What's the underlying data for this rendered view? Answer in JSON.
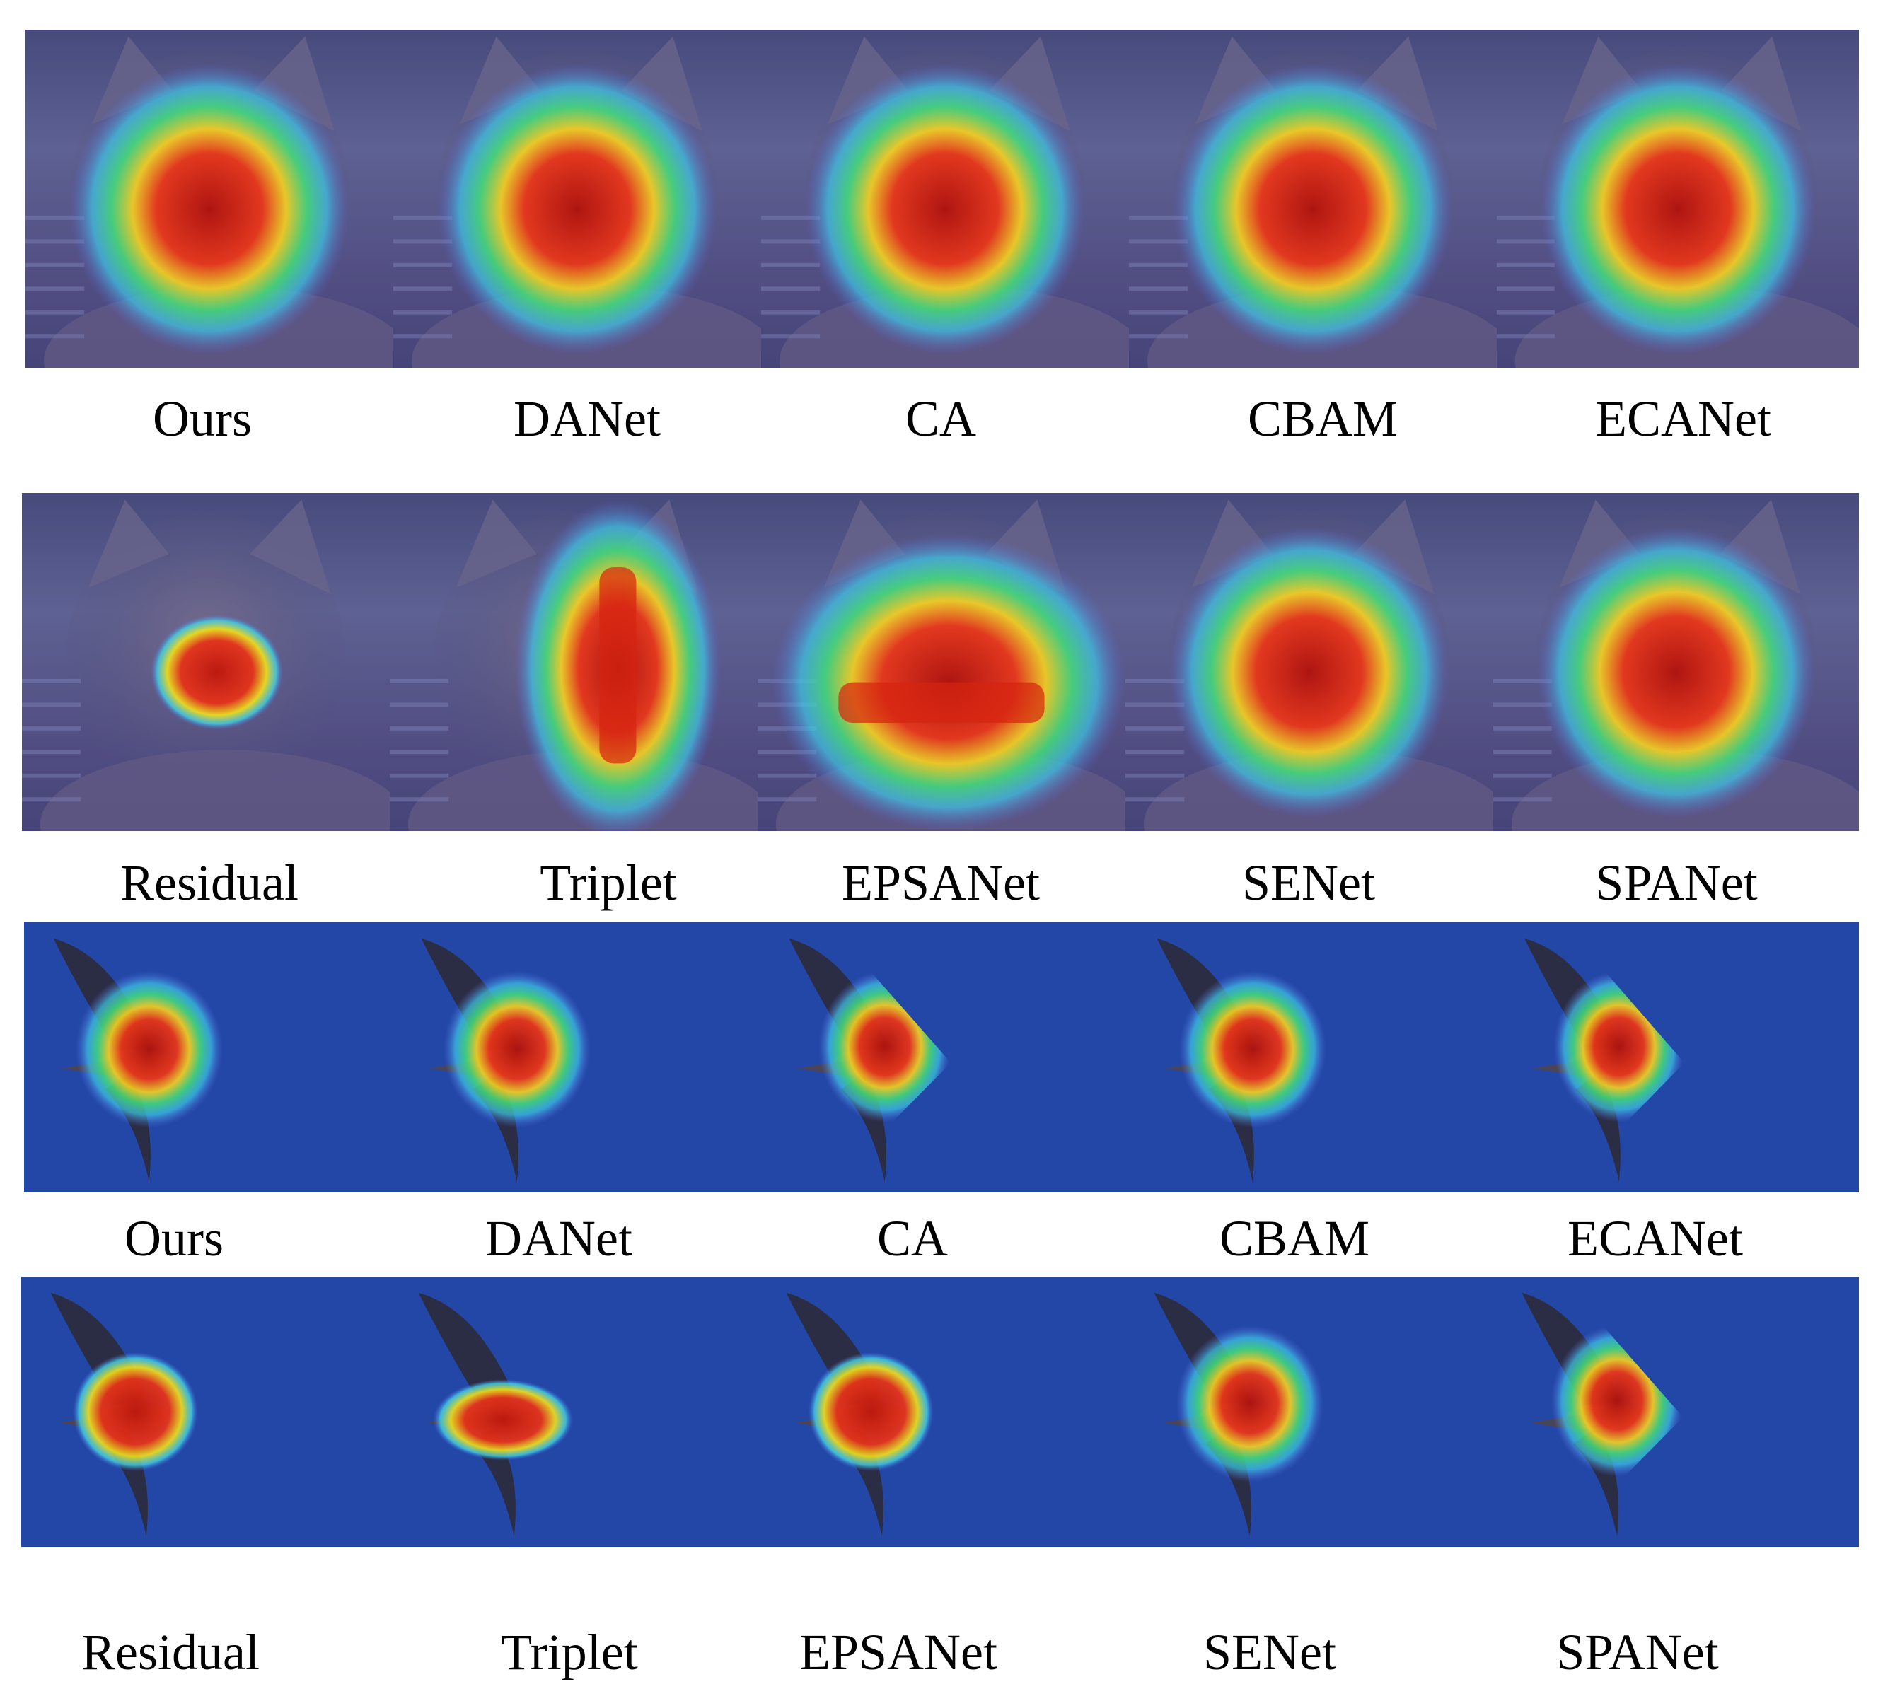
{
  "rows": [
    {
      "subject": "cat",
      "labels": [
        "Ours",
        "DANet",
        "CA",
        "CBAM",
        "ECANet"
      ],
      "heatmap": [
        "box",
        "box",
        "box",
        "box",
        "box"
      ]
    },
    {
      "subject": "cat",
      "labels": [
        "Residual",
        "Triplet",
        "EPSANet",
        "SENet",
        "SPANet"
      ],
      "heatmap": [
        "small-blob",
        "vertical-strip",
        "horizontal-band",
        "box",
        "box"
      ]
    },
    {
      "subject": "bird",
      "labels": [
        "Ours",
        "DANet",
        "CA",
        "CBAM",
        "ECANet"
      ],
      "heatmap": [
        "box",
        "box",
        "triangle",
        "box",
        "triangle"
      ]
    },
    {
      "subject": "bird",
      "labels": [
        "Residual",
        "Triplet",
        "EPSANet",
        "SENet",
        "SPANet"
      ],
      "heatmap": [
        "small-blob",
        "small-flat",
        "small-blob",
        "box",
        "triangle"
      ]
    }
  ],
  "colors": {
    "cat_background": "#575a83",
    "cat_overlay_base": "#3a3e86",
    "bird_background": "#2347a7",
    "heat_red": "#d6230f",
    "heat_yellow": "#f3e219",
    "heat_cyan": "#3fd4e6",
    "bird_body": "#2c2a3a"
  }
}
